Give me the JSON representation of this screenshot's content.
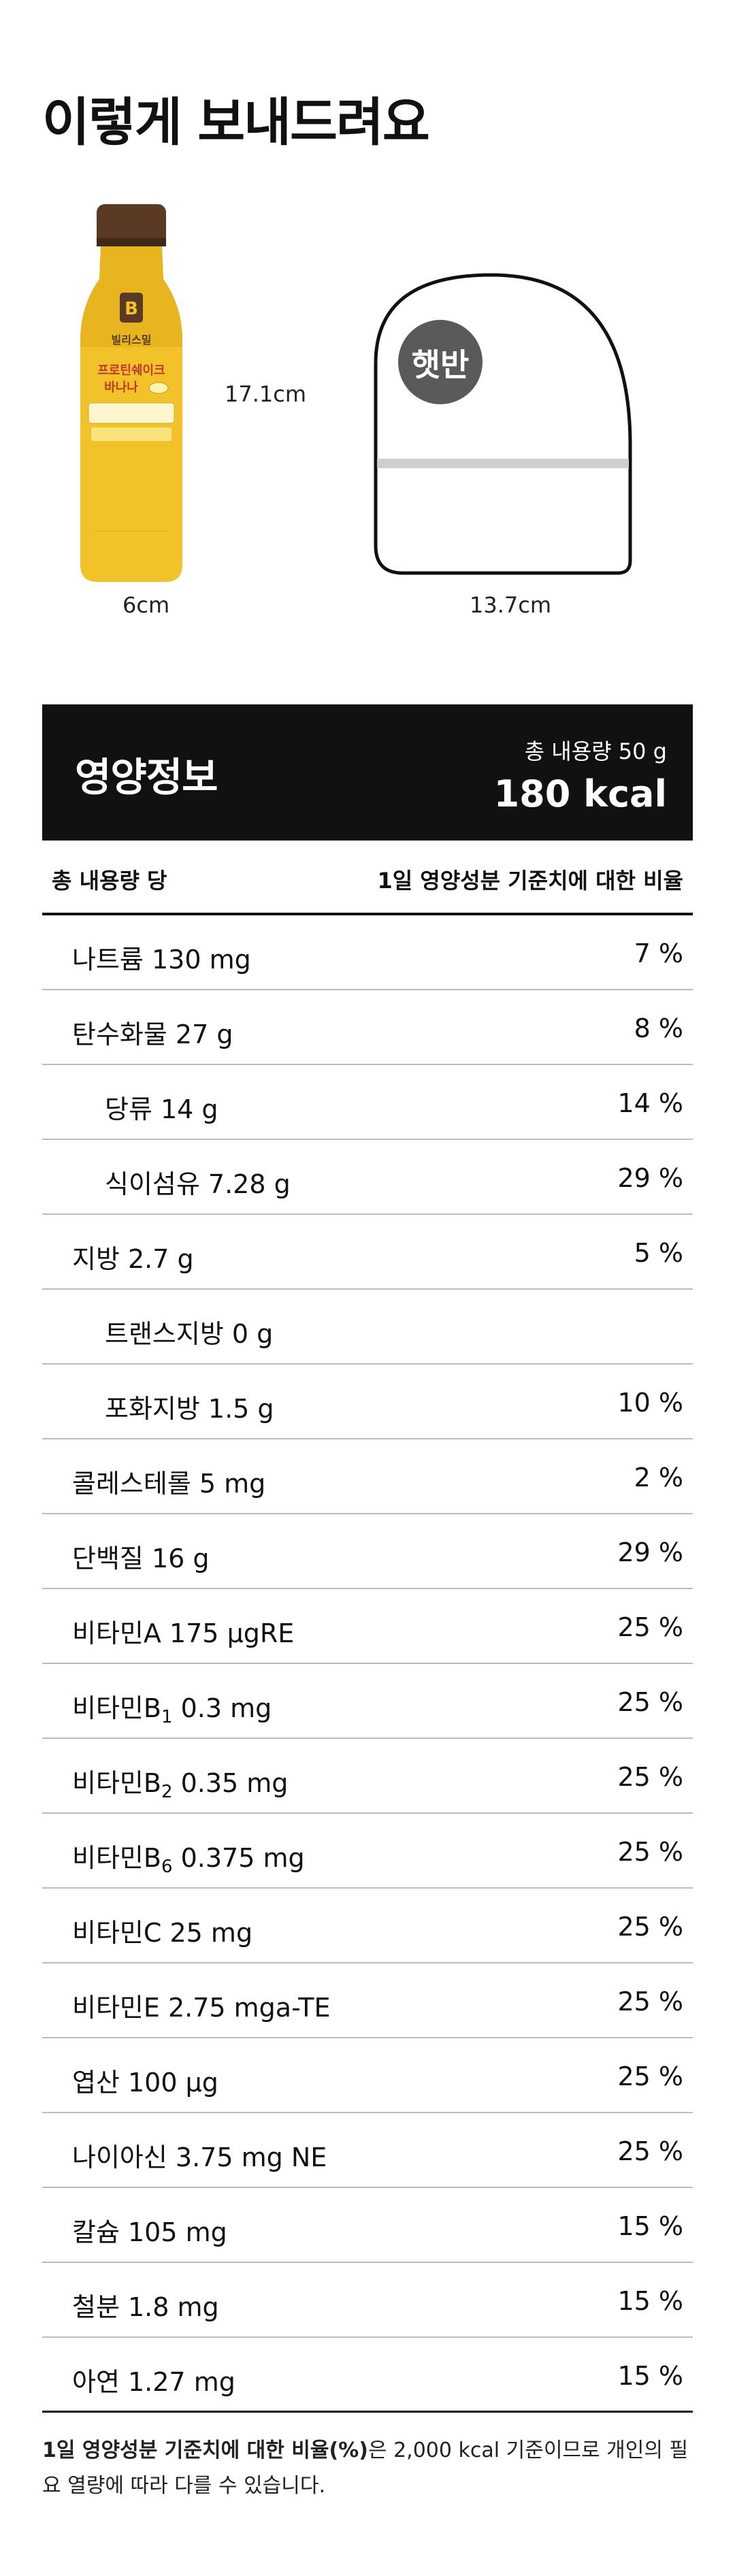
{
  "title": "이렇게 보내드려요",
  "product": {
    "bottle_brand": "빌리스밀",
    "bottle_name_line1": "프로틴쉐이크",
    "bottle_name_line2": "바나나",
    "bottle_height": "17.1cm",
    "bottle_width": "6cm",
    "rice_box_logo": "햇반",
    "rice_box_width": "13.7cm"
  },
  "nutrition": {
    "title": "영양정보",
    "total_amount": "총 내용량 50 g",
    "kcal": "180 kcal",
    "col_left": "총 내용량 당",
    "col_right": "1일 영양성분 기준치에 대한 비율",
    "rows": [
      {
        "name": "나트륨 130 mg",
        "pct": "7 %"
      },
      {
        "name": "탄수화물 27 g",
        "pct": "8 %"
      },
      {
        "name": "당류 14 g",
        "pct": "14 %"
      },
      {
        "name": "식이섬유 7.28 g",
        "pct": "29 %"
      },
      {
        "name": "지방 2.7 g",
        "pct": "5 %"
      },
      {
        "name": "트랜스지방 0 g",
        "pct": ""
      },
      {
        "name": "포화지방 1.5 g",
        "pct": "10 %"
      },
      {
        "name": "콜레스테롤 5 mg",
        "pct": "2 %"
      },
      {
        "name": "단백질 16 g",
        "pct": "29 %"
      },
      {
        "name": "비타민A 175 μgRE",
        "pct": "25 %"
      },
      {
        "name_prefix": "비타민B",
        "name_sub": "1",
        "name_suffix": " 0.3 mg",
        "pct": "25 %"
      },
      {
        "name_prefix": "비타민B",
        "name_sub": "2",
        "name_suffix": " 0.35 mg",
        "pct": "25 %"
      },
      {
        "name_prefix": "비타민B",
        "name_sub": "6",
        "name_suffix": " 0.375 mg",
        "pct": "25 %"
      },
      {
        "name": "비타민C 25 mg",
        "pct": "25 %"
      },
      {
        "name": "비타민E 2.75 mga-TE",
        "pct": "25 %"
      },
      {
        "name": "엽산 100 μg",
        "pct": "25 %"
      },
      {
        "name": "나이아신 3.75 mg NE",
        "pct": "25 %"
      },
      {
        "name": "칼슘 105 mg",
        "pct": "15 %"
      },
      {
        "name": "철분 1.8 mg",
        "pct": "15 %"
      },
      {
        "name": "아연 1.27 mg",
        "pct": "15 %"
      }
    ],
    "footnote_bold": "1일 영양성분 기준치에 대한 비율(%)",
    "footnote_rest": "은 2,000 kcal 기준이므로 개인의 필요 열량에 따라 다를 수 있습니다."
  },
  "colors": {
    "bottle_yellow": "#f2c22a",
    "bottle_cap": "#5a3a25",
    "header_black": "#111111"
  }
}
